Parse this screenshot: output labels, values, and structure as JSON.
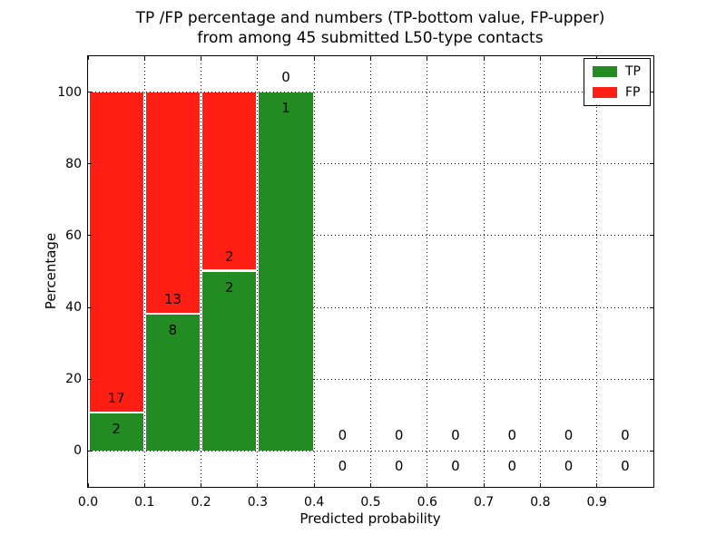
{
  "chart_data": {
    "type": "bar",
    "stacked": true,
    "title_lines": [
      "TP /FP percentage and numbers (TP-bottom value, FP-upper)",
      "from among 45 submitted L50-type contacts"
    ],
    "xlabel": "Predicted probability",
    "ylabel": "Percentage",
    "xlim": [
      0.0,
      1.0
    ],
    "ylim": [
      -10,
      110
    ],
    "xtick_labels": [
      "0.0",
      "0.1",
      "0.2",
      "0.3",
      "0.4",
      "0.5",
      "0.6",
      "0.7",
      "0.8",
      "0.9"
    ],
    "xtick_values": [
      0.0,
      0.1,
      0.2,
      0.3,
      0.4,
      0.5,
      0.6,
      0.7,
      0.8,
      0.9
    ],
    "ytick_values": [
      0,
      20,
      40,
      60,
      80,
      100
    ],
    "grid_style": "dotted",
    "bin_width": 0.1,
    "bin_starts": [
      0.0,
      0.1,
      0.2,
      0.3,
      0.4,
      0.5,
      0.6,
      0.7,
      0.8,
      0.9
    ],
    "series": [
      {
        "name": "TP",
        "color": "#228B22",
        "counts": [
          2,
          8,
          2,
          1,
          0,
          0,
          0,
          0,
          0,
          0
        ]
      },
      {
        "name": "FP",
        "color": "#FF1E14",
        "counts": [
          17,
          13,
          2,
          0,
          0,
          0,
          0,
          0,
          0,
          0
        ]
      }
    ],
    "legend": {
      "position": "upper right",
      "entries": [
        "TP",
        "FP"
      ]
    }
  }
}
